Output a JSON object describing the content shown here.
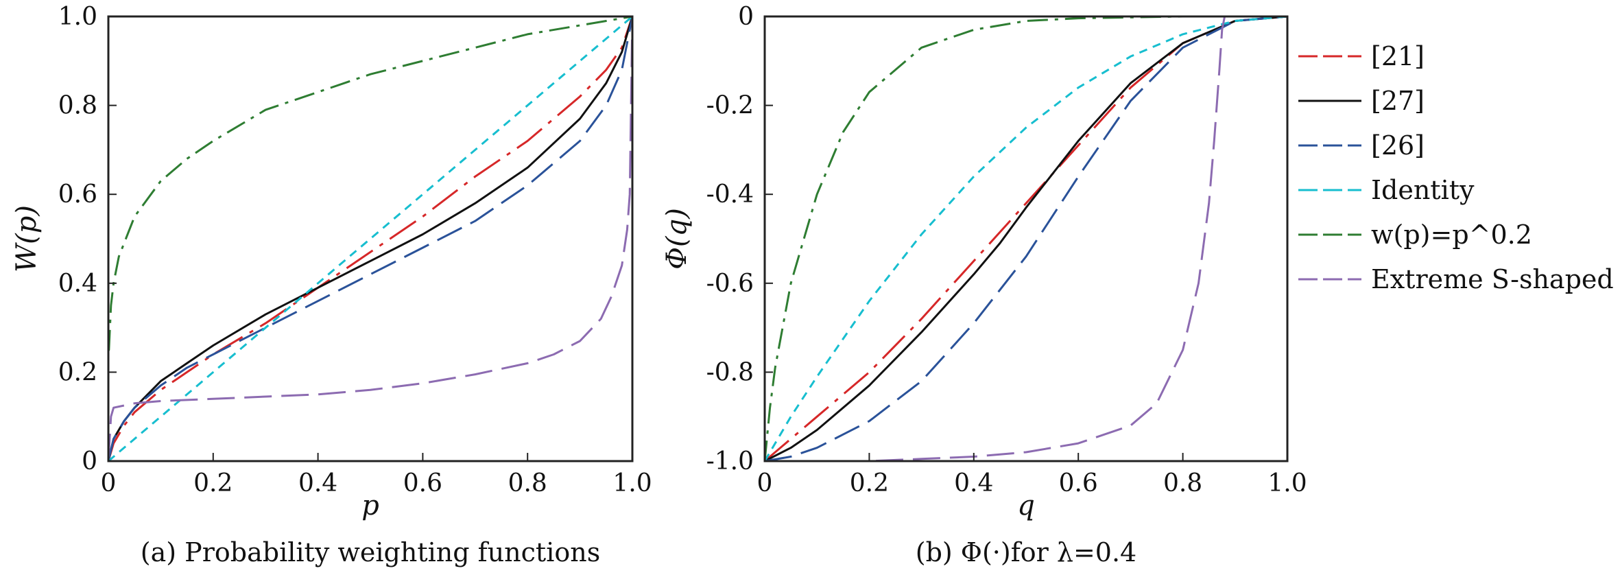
{
  "chart_data": [
    {
      "type": "line",
      "title": "(a) Probability weighting functions",
      "xlabel": "p",
      "ylabel": "W(p)",
      "xlim": [
        0,
        1
      ],
      "ylim": [
        0,
        1
      ],
      "xticks": [
        "0",
        "0.2",
        "0.4",
        "0.6",
        "0.8",
        "1.0"
      ],
      "yticks": [
        "0",
        "0.2",
        "0.4",
        "0.6",
        "0.8",
        "1.0"
      ],
      "grid": false,
      "series": [
        {
          "name": "[21]",
          "color": "#d62728",
          "dash": "long-dash-dot",
          "x": [
            0,
            0.01,
            0.03,
            0.05,
            0.1,
            0.15,
            0.2,
            0.3,
            0.4,
            0.5,
            0.6,
            0.7,
            0.8,
            0.9,
            0.95,
            0.98,
            1
          ],
          "y": [
            0,
            0.04,
            0.08,
            0.11,
            0.16,
            0.2,
            0.24,
            0.31,
            0.39,
            0.47,
            0.55,
            0.64,
            0.72,
            0.82,
            0.88,
            0.93,
            1
          ]
        },
        {
          "name": "[27]",
          "color": "#111111",
          "dash": "solid",
          "x": [
            0,
            0.01,
            0.03,
            0.05,
            0.1,
            0.15,
            0.2,
            0.3,
            0.4,
            0.5,
            0.6,
            0.7,
            0.8,
            0.9,
            0.95,
            0.98,
            1
          ],
          "y": [
            0,
            0.05,
            0.09,
            0.12,
            0.18,
            0.22,
            0.26,
            0.33,
            0.39,
            0.45,
            0.51,
            0.58,
            0.66,
            0.77,
            0.85,
            0.92,
            1
          ]
        },
        {
          "name": "[26]",
          "color": "#2a5299",
          "dash": "long-dash",
          "x": [
            0,
            0.01,
            0.03,
            0.05,
            0.1,
            0.15,
            0.2,
            0.3,
            0.4,
            0.5,
            0.6,
            0.7,
            0.8,
            0.9,
            0.95,
            0.98,
            1
          ],
          "y": [
            0,
            0.05,
            0.09,
            0.12,
            0.17,
            0.21,
            0.24,
            0.3,
            0.36,
            0.42,
            0.48,
            0.54,
            0.62,
            0.72,
            0.8,
            0.88,
            1
          ]
        },
        {
          "name": "Identity",
          "color": "#17becf",
          "dash": "short-dash",
          "x": [
            0,
            1
          ],
          "y": [
            0,
            1
          ]
        },
        {
          "name": "w(p)=p^0.2",
          "color": "#2e7d32",
          "dash": "dash-dot",
          "x": [
            0,
            0.001,
            0.005,
            0.01,
            0.02,
            0.05,
            0.1,
            0.15,
            0.2,
            0.3,
            0.4,
            0.5,
            0.6,
            0.7,
            0.8,
            0.9,
            1
          ],
          "y": [
            0.25,
            0.25,
            0.35,
            0.4,
            0.46,
            0.55,
            0.63,
            0.68,
            0.72,
            0.79,
            0.83,
            0.87,
            0.9,
            0.93,
            0.96,
            0.98,
            1
          ]
        },
        {
          "name": "Extreme S-shaped",
          "color": "#8c6bb1",
          "dash": "long-dash",
          "x": [
            0,
            0.005,
            0.01,
            0.05,
            0.1,
            0.2,
            0.3,
            0.4,
            0.5,
            0.6,
            0.7,
            0.8,
            0.85,
            0.9,
            0.94,
            0.96,
            0.98,
            0.99,
            0.995,
            1
          ],
          "y": [
            0,
            0.1,
            0.12,
            0.13,
            0.135,
            0.14,
            0.145,
            0.15,
            0.16,
            0.175,
            0.195,
            0.22,
            0.24,
            0.27,
            0.32,
            0.37,
            0.44,
            0.52,
            0.6,
            1
          ]
        }
      ]
    },
    {
      "type": "line",
      "title": "(b) Φ(·)for λ=0.4",
      "xlabel": "q",
      "ylabel": "Φ(q)",
      "xlim": [
        0,
        1
      ],
      "ylim": [
        -1,
        0
      ],
      "xticks": [
        "0",
        "0.2",
        "0.4",
        "0.6",
        "0.8",
        "1.0"
      ],
      "yticks": [
        "0",
        "-0.2",
        "-0.4",
        "-0.6",
        "-0.8",
        "-1.0"
      ],
      "grid": false,
      "legend": "right",
      "series": [
        {
          "name": "[21]",
          "color": "#d62728",
          "dash": "long-dash-dot",
          "x": [
            0,
            0.05,
            0.1,
            0.2,
            0.3,
            0.4,
            0.5,
            0.6,
            0.7,
            0.8,
            0.9,
            1
          ],
          "y": [
            -1,
            -0.95,
            -0.9,
            -0.8,
            -0.68,
            -0.55,
            -0.42,
            -0.29,
            -0.16,
            -0.06,
            -0.01,
            0
          ]
        },
        {
          "name": "[27]",
          "color": "#111111",
          "dash": "solid",
          "x": [
            0,
            0.05,
            0.1,
            0.2,
            0.3,
            0.4,
            0.45,
            0.5,
            0.6,
            0.7,
            0.8,
            0.9,
            1
          ],
          "y": [
            -1,
            -0.97,
            -0.93,
            -0.83,
            -0.71,
            -0.58,
            -0.51,
            -0.43,
            -0.28,
            -0.15,
            -0.06,
            -0.01,
            0
          ]
        },
        {
          "name": "[26]",
          "color": "#2a5299",
          "dash": "long-dash",
          "x": [
            0,
            0.05,
            0.1,
            0.2,
            0.3,
            0.4,
            0.5,
            0.6,
            0.7,
            0.8,
            0.9,
            1
          ],
          "y": [
            -1,
            -0.99,
            -0.97,
            -0.91,
            -0.82,
            -0.69,
            -0.54,
            -0.36,
            -0.19,
            -0.07,
            -0.01,
            0
          ]
        },
        {
          "name": "Identity",
          "color": "#17becf",
          "dash": "short-dash",
          "x": [
            0,
            0.05,
            0.1,
            0.2,
            0.3,
            0.4,
            0.5,
            0.6,
            0.7,
            0.8,
            0.9,
            1
          ],
          "y": [
            -1,
            -0.9,
            -0.81,
            -0.64,
            -0.49,
            -0.36,
            -0.25,
            -0.16,
            -0.09,
            -0.04,
            -0.01,
            0
          ]
        },
        {
          "name": "w(p)=p^0.2",
          "color": "#2e7d32",
          "dash": "dash-dot",
          "x": [
            0,
            0.01,
            0.02,
            0.05,
            0.1,
            0.15,
            0.2,
            0.3,
            0.4,
            0.5,
            0.6,
            0.8,
            1
          ],
          "y": [
            -1,
            -0.88,
            -0.79,
            -0.6,
            -0.4,
            -0.26,
            -0.17,
            -0.07,
            -0.03,
            -0.01,
            -0.004,
            0,
            0
          ]
        },
        {
          "name": "Extreme S-shaped",
          "color": "#8c6bb1",
          "dash": "long-dash",
          "x": [
            0,
            0.2,
            0.3,
            0.4,
            0.5,
            0.6,
            0.7,
            0.75,
            0.8,
            0.83,
            0.85,
            0.86,
            0.87,
            0.875,
            0.88,
            1
          ],
          "y": [
            -1,
            -1,
            -0.995,
            -0.99,
            -0.98,
            -0.96,
            -0.92,
            -0.87,
            -0.75,
            -0.6,
            -0.42,
            -0.28,
            -0.12,
            -0.03,
            0,
            0
          ]
        }
      ]
    }
  ]
}
